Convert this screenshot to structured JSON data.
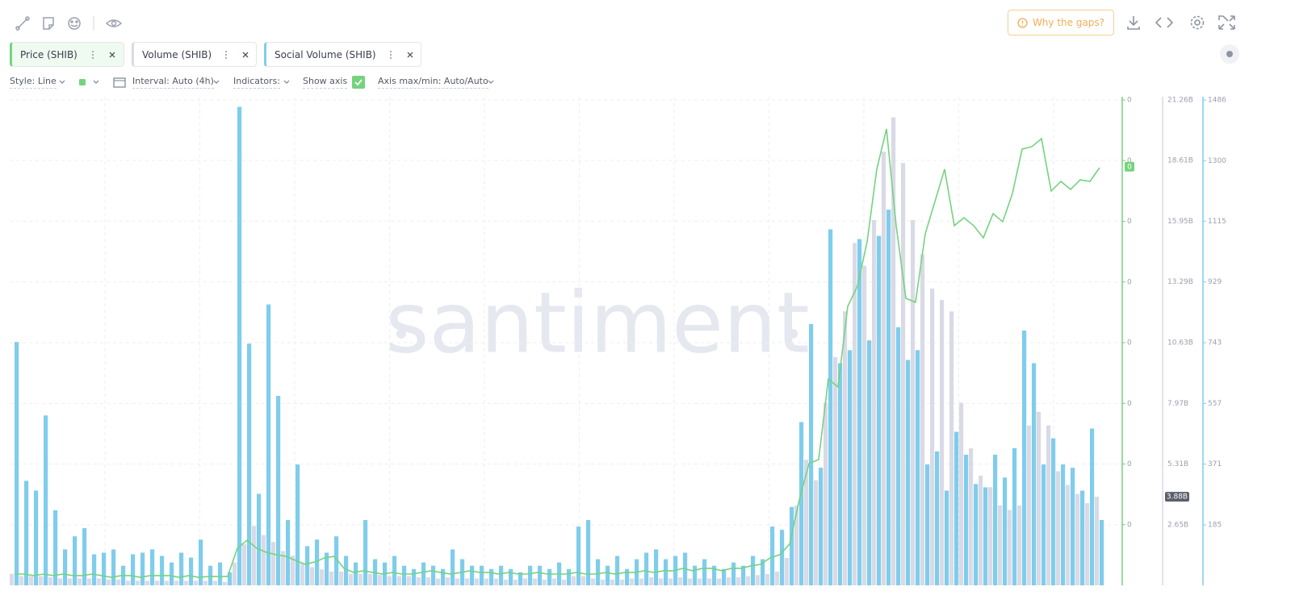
{
  "toolbar": {
    "gaps_button": "Why the gaps?"
  },
  "settings": {
    "style": "Style: Line",
    "interval": "Interval: Auto (4h)",
    "indicators": "Indicators:",
    "show_axis": "Show axis",
    "axis_range": "Axis max/min: Auto/Auto"
  },
  "watermark": "santiment",
  "chart_data": {
    "type": "combo",
    "grid": true,
    "series": [
      {
        "name": "Price (SHIB)",
        "type": "line",
        "axis": "y",
        "color": "#74d37f",
        "values": [
          9.3e-07,
          9.3e-07,
          8e-07,
          9.3e-07,
          8e-07,
          9.3e-07,
          8e-07,
          8e-07,
          9.3e-07,
          8e-07,
          6.6e-07,
          8e-07,
          8e-07,
          6.6e-07,
          8e-07,
          8e-07,
          8e-07,
          6.6e-07,
          8e-07,
          6.6e-07,
          7.3e-07,
          7.3e-07,
          7.3e-07,
          3.06e-06,
          3.72e-06,
          3.06e-06,
          2.72e-06,
          2.53e-06,
          2.39e-06,
          2.06e-06,
          1.73e-06,
          1.93e-06,
          2.26e-06,
          2.39e-06,
          1.4e-06,
          1.06e-06,
          1.2e-06,
          1.06e-06,
          9.3e-07,
          1.06e-06,
          9.3e-07,
          9.3e-07,
          1.06e-06,
          1.2e-06,
          1.06e-06,
          9.3e-07,
          1.06e-06,
          1.2e-06,
          1.06e-06,
          1.06e-06,
          9.3e-07,
          1.06e-06,
          9.3e-07,
          9.3e-07,
          1.06e-06,
          9.3e-07,
          9.3e-07,
          9.3e-07,
          1.06e-06,
          9.3e-07,
          9.3e-07,
          1.06e-06,
          9.3e-07,
          1.06e-06,
          1.06e-06,
          1.2e-06,
          1.06e-06,
          1.2e-06,
          1.2e-06,
          1.4e-06,
          1.2e-06,
          1.4e-06,
          1.4e-06,
          1.2e-06,
          1.4e-06,
          1.4e-06,
          1.6e-06,
          1.73e-06,
          2.26e-06,
          2.53e-06,
          3.39e-06,
          7.04e-06,
          1.003e-05,
          1.037e-05,
          1.701e-05,
          1.635e-05,
          2.299e-05,
          2.465e-05,
          2.831e-05,
          3.429e-05,
          3.761e-05,
          2.964e-05,
          2.366e-05,
          2.332e-05,
          2.897e-05,
          3.163e-05,
          3.429e-05,
          2.964e-05,
          3.03e-05,
          2.964e-05,
          2.864e-05,
          3.063e-05,
          2.997e-05,
          3.229e-05,
          3.595e-05,
          3.615e-05,
          3.681e-05,
          3.249e-05,
          3.329e-05,
          3.263e-05,
          3.342e-05,
          3.329e-05,
          3.442e-05
        ]
      },
      {
        "name": "Volume (SHIB)",
        "type": "bar",
        "axis": "y2",
        "color": "#d9dae6",
        "values": [
          500000000.0,
          400000000.0,
          400000000.0,
          400000000.0,
          350000000.0,
          300000000.0,
          300000000.0,
          300000000.0,
          300000000.0,
          300000000.0,
          250000000.0,
          250000000.0,
          200000000.0,
          200000000.0,
          200000000.0,
          200000000.0,
          200000000.0,
          200000000.0,
          200000000.0,
          200000000.0,
          200000000.0,
          200000000.0,
          150000000.0,
          1000000000.0,
          1800000000.0,
          2600000000.0,
          2200000000.0,
          1900000000.0,
          1500000000.0,
          1300000000.0,
          1000000000.0,
          800000000.0,
          700000000.0,
          600000000.0,
          600000000.0,
          500000000.0,
          500000000.0,
          500000000.0,
          450000000.0,
          400000000.0,
          400000000.0,
          400000000.0,
          350000000.0,
          350000000.0,
          300000000.0,
          350000000.0,
          300000000.0,
          300000000.0,
          300000000.0,
          300000000.0,
          300000000.0,
          250000000.0,
          250000000.0,
          300000000.0,
          300000000.0,
          250000000.0,
          300000000.0,
          250000000.0,
          400000000.0,
          400000000.0,
          300000000.0,
          250000000.0,
          250000000.0,
          250000000.0,
          300000000.0,
          300000000.0,
          350000000.0,
          300000000.0,
          300000000.0,
          350000000.0,
          300000000.0,
          300000000.0,
          300000000.0,
          300000000.0,
          350000000.0,
          350000000.0,
          400000000.0,
          450000000.0,
          500000000.0,
          600000000.0,
          1200000000.0,
          3500000000.0,
          5500000000.0,
          4600000000.0,
          8000000000.0,
          10000000000.0,
          12000000000.0,
          15000000000.0,
          14000000000.0,
          16000000000.0,
          19000000000.0,
          20500000000.0,
          18500000000.0,
          16000000000.0,
          14500000000.0,
          13000000000.0,
          12500000000.0,
          12000000000.0,
          8000000000.0,
          6000000000.0,
          4800000000.0,
          4300000000.0,
          3500000000.0,
          3300000000.0,
          3500000000.0,
          7000000000.0,
          7600000000.0,
          7000000000.0,
          5000000000.0,
          4400000000.0,
          4000000000.0,
          3600000000.0,
          3880000000.0
        ]
      },
      {
        "name": "Social Volume (SHIB)",
        "type": "bar",
        "axis": "y3",
        "color": "#7fcdec",
        "values": [
          745,
          320,
          290,
          520,
          230,
          110,
          150,
          175,
          95,
          100,
          110,
          60,
          95,
          100,
          110,
          90,
          70,
          100,
          85,
          140,
          60,
          70,
          40,
          1465,
          740,
          280,
          860,
          580,
          200,
          370,
          120,
          140,
          100,
          150,
          90,
          70,
          200,
          80,
          70,
          90,
          60,
          50,
          70,
          60,
          50,
          110,
          80,
          60,
          60,
          50,
          60,
          50,
          40,
          60,
          60,
          50,
          70,
          50,
          180,
          200,
          80,
          60,
          90,
          50,
          80,
          100,
          110,
          80,
          90,
          100,
          60,
          80,
          60,
          50,
          70,
          60,
          90,
          80,
          180,
          170,
          240,
          500,
          800,
          360,
          1090,
          680,
          720,
          1060,
          750,
          1070,
          1150,
          790,
          690,
          720,
          370,
          410,
          290,
          470,
          400,
          310,
          300,
          400,
          330,
          420,
          780,
          680,
          370,
          450,
          370,
          360,
          290,
          480,
          200
        ]
      }
    ],
    "ylim": [
      0,
      4e-05
    ],
    "yticks": [
      {
        "value": 5e-06,
        "label": "0"
      },
      {
        "value": 1e-05,
        "label": "0"
      },
      {
        "value": 1.5e-05,
        "label": "0"
      },
      {
        "value": 2e-05,
        "label": "0"
      },
      {
        "value": 2.5e-05,
        "label": "0"
      },
      {
        "value": 3e-05,
        "label": "0"
      },
      {
        "value": 3.5e-05,
        "label": "0"
      },
      {
        "value": 4e-05,
        "label": "0"
      }
    ],
    "y2lim": [
      0,
      21260000000.0
    ],
    "y2ticks": [
      {
        "value": 2650000000.0,
        "label": "2.65B"
      },
      {
        "value": 5310000000.0,
        "label": "5.31B"
      },
      {
        "value": 7970000000.0,
        "label": "7.97B"
      },
      {
        "value": 10630000000.0,
        "label": "10.63B"
      },
      {
        "value": 13290000000.0,
        "label": "13.29B"
      },
      {
        "value": 15950000000.0,
        "label": "15.95B"
      },
      {
        "value": 18610000000.0,
        "label": "18.61B"
      },
      {
        "value": 21260000000.0,
        "label": "21.26B"
      }
    ],
    "y3lim": [
      0,
      1486
    ],
    "y3ticks": [
      185,
      371,
      557,
      743,
      929,
      1115,
      1300,
      1486
    ],
    "price_marker": {
      "value": 3.45e-05,
      "label": "0"
    },
    "volume_marker": {
      "value": 3880000000.0,
      "label": "3.88B"
    }
  }
}
